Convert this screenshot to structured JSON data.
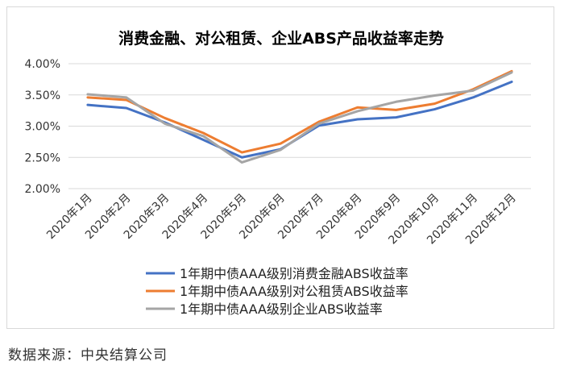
{
  "chart_data": {
    "type": "line",
    "title": "消费金融、对公租赁、企业ABS产品收益率走势",
    "xlabel": "",
    "ylabel": "",
    "categories": [
      "2020年1月",
      "2020年2月",
      "2020年3月",
      "2020年4月",
      "2020年5月",
      "2020年6月",
      "2020年7月",
      "2020年8月",
      "2020年9月",
      "2020年10月",
      "2020年11月",
      "2020年12月"
    ],
    "ylim": [
      2.0,
      4.0
    ],
    "yticks": [
      "2.00%",
      "2.50%",
      "3.00%",
      "3.50%",
      "4.00%"
    ],
    "grid": "horizontal",
    "legend_position": "bottom",
    "series": [
      {
        "name": "1年期中债AAA级别消费金融ABS收益率",
        "color": "#4472C4",
        "values": [
          3.34,
          3.29,
          3.06,
          2.78,
          2.5,
          2.63,
          3.01,
          3.11,
          3.14,
          3.27,
          3.46,
          3.71
        ]
      },
      {
        "name": "1年期中债AAA级别对公租赁ABS收益率",
        "color": "#ED7D31",
        "values": [
          3.46,
          3.42,
          3.13,
          2.89,
          2.58,
          2.72,
          3.07,
          3.3,
          3.26,
          3.36,
          3.59,
          3.88
        ]
      },
      {
        "name": "1年期中债AAA级别企业ABS收益率",
        "color": "#A5A5A5",
        "values": [
          3.51,
          3.46,
          3.04,
          2.84,
          2.42,
          2.62,
          3.04,
          3.24,
          3.39,
          3.49,
          3.57,
          3.86
        ]
      }
    ]
  },
  "footer": {
    "source": "数据来源：中央结算公司"
  }
}
